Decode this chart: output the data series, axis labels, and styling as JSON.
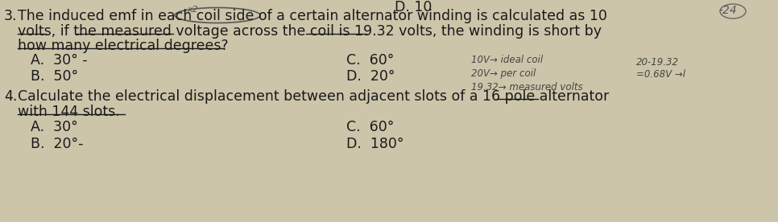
{
  "bg_color": "#cdc5aa",
  "text_color": "#1a1a1a",
  "q3_number": "3.",
  "q3_line1": "The induced emf in each coil side of a certain alternator winding is calculated as 10",
  "q3_line2": "volts, if the measured voltage across the coil is 19.32 volts, the winding is short by",
  "q3_line3": "how many electrical degrees?",
  "q3_A": "A.  30° -",
  "q3_B": "B.  50°",
  "q3_C": "C.  60°",
  "q3_D": "D.  20°",
  "q4_number": "4.",
  "q4_line1": "Calculate the electrical displacement between adjacent slots of a 16 pole alternator",
  "q4_line2": "with 144 slots.",
  "q4_A": "A.  30°",
  "q4_B": "B.  20°-",
  "q4_C": "C.  60°",
  "q4_D": "D.  180°",
  "note_right1": "10V→ ideal coil",
  "note_right2": "20V→ per coil",
  "note_right3": "19.32→ measured volts",
  "note_calc1": "20-19.32",
  "note_calc2": "=0.68V →l",
  "corner_note": "-24",
  "x2_note": "x2",
  "top_label": "D. 10"
}
